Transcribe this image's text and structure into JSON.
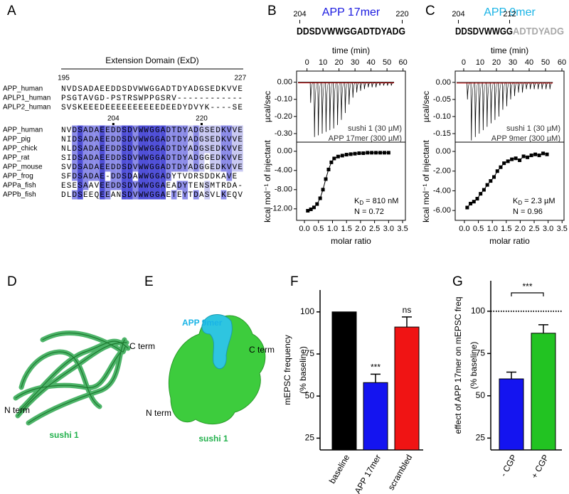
{
  "panel_labels": [
    "A",
    "B",
    "C",
    "D",
    "E",
    "F",
    "G"
  ],
  "alignment": {
    "title": "Extension Domain (ExD)",
    "blocks": [
      {
        "start": 195,
        "end": 227,
        "rows": [
          {
            "name": "APP_human",
            "sequence": "NVDSADAEEDDSDVWWGGADTDYADGSEDKVVE"
          },
          {
            "name": "APLP1_human",
            "sequence": "PSGTAVGD-PSTRSWPPGSRV------------"
          },
          {
            "name": "APLP2_human",
            "sequence": "SVSKEEEDEEEEEEEEEEDEEDYDVYK----SE"
          }
        ]
      },
      {
        "markers": [
          204,
          220
        ],
        "rows": [
          {
            "name": "APP_human",
            "sequence": "NVDSADAEEDDSDVWWGGADTDYADGSEDKVVE"
          },
          {
            "name": "APP_pig",
            "sequence": "NIDSADAEEDDSDVWWGGADTDYADGSEDKVVE"
          },
          {
            "name": "APP_chick",
            "sequence": "NLDSADAEEDDSDVWWGGADTDYADGSEDKVVE"
          },
          {
            "name": "APP_rat",
            "sequence": "SIDSADAEEDDSDVWWGGADTDYADGGEDKVVE"
          },
          {
            "name": "APP_mouse",
            "sequence": "SVDSADAEEDDSDVWWGGADTDYADGGEDKVVE"
          },
          {
            "name": "APP_frog",
            "sequence": "SFDSADAE-DDSDAWWGGADYTVDRSDDKAVE"
          },
          {
            "name": "APPa_fish",
            "sequence": "ESESAAVEEDDSDVWWGGAEADYTENSMTRDA-"
          },
          {
            "name": "APPb_fish",
            "sequence": "DLDSEEQEEANSDVWWGGAETEYTDASVLKEQV"
          }
        ]
      }
    ]
  },
  "chart_data": [
    {
      "type": "itc",
      "title": "APP 17mer",
      "title_color": "#1a1ae0",
      "sequence_start": 204,
      "sequence": [
        {
          "text": "DDSDVWWGGADTDYADG",
          "color": "#000000",
          "end_label": 220
        }
      ],
      "raw": {
        "xlabel": "time (min)",
        "ylabel": "µcal/sec",
        "xlim": [
          -6.5,
          61.5
        ],
        "xticks": [
          0,
          10,
          20,
          30,
          40,
          50,
          60
        ],
        "ylim": [
          -0.35,
          0.065
        ],
        "yticks": [
          {
            "value": 0,
            "label": "0.00"
          },
          {
            "value": -0.1,
            "label": "-0.10"
          },
          {
            "value": -0.2,
            "label": "-0.20"
          },
          {
            "value": -0.3,
            "label": "-0.30"
          }
        ],
        "x": [
          2,
          4.4,
          6.8,
          9.2,
          11.6,
          14,
          16.4,
          18.8,
          21.2,
          23.6,
          26,
          28.4,
          30.8,
          33.2,
          35.6,
          38,
          40.4,
          42.8,
          45.2,
          47.6,
          50,
          52.4
        ],
        "values": [
          -0.12,
          -0.32,
          -0.31,
          -0.3,
          -0.29,
          -0.28,
          -0.27,
          -0.25,
          -0.22,
          -0.18,
          -0.13,
          -0.09,
          -0.06,
          -0.05,
          -0.04,
          -0.03,
          -0.03,
          -0.03,
          -0.02,
          -0.02,
          -0.02,
          -0.02
        ],
        "color": "#000000",
        "baseline_color": "#c00000"
      },
      "binding": {
        "xlabel": "molar ratio",
        "ylabel": "kcal mol⁻¹ of injectant",
        "xlim": [
          -0.28,
          3.6
        ],
        "xticks": [
          {
            "value": 0,
            "label": "0.0"
          },
          0.5,
          {
            "value": 1,
            "label": "1.0"
          },
          1.5,
          {
            "value": 2,
            "label": "2.0"
          },
          2.5,
          {
            "value": 3,
            "label": "3.0"
          },
          3.5
        ],
        "ylim": [
          -14.4,
          1.9
        ],
        "yticks": [
          {
            "value": 0,
            "label": "0.00"
          },
          {
            "value": -4,
            "label": "-4.00"
          },
          {
            "value": -8,
            "label": "-8.00"
          },
          {
            "value": -12,
            "label": "-12.00"
          }
        ],
        "x": [
          0.12,
          0.23,
          0.34,
          0.45,
          0.56,
          0.66,
          0.76,
          0.86,
          0.96,
          1.06,
          1.2,
          1.35,
          1.5,
          1.65,
          1.8,
          1.95,
          2.1,
          2.25,
          2.4,
          2.55,
          2.7,
          2.85,
          3.0
        ],
        "values": [
          -12.4,
          -12.1,
          -11.7,
          -11.0,
          -9.8,
          -8.0,
          -5.8,
          -3.8,
          -2.3,
          -1.5,
          -1.1,
          -0.9,
          -0.7,
          -0.6,
          -0.5,
          -0.4,
          -0.4,
          -0.3,
          -0.3,
          -0.3,
          -0.3,
          -0.3,
          -0.3
        ]
      },
      "annotations": [
        "sushi 1 (30 µM)",
        "APP 17mer (300 µM)"
      ],
      "kd": {
        "symbol": "K",
        "subscript": "D",
        "text": " = 810 nM"
      },
      "n_text": "N = 0.72"
    },
    {
      "type": "itc",
      "title": "APP 9mer",
      "title_color": "#1ab4e6",
      "sequence_start": 204,
      "sequence": [
        {
          "text": "DDSDVWWGG",
          "color": "#000000",
          "end_label": 212
        },
        {
          "text": "ADTDYADG",
          "color": "#a8a8a8"
        }
      ],
      "raw": {
        "xlabel": "time (min)",
        "ylabel": "µcal/sec",
        "xlim": [
          -5.2,
          61.3
        ],
        "xticks": [
          0,
          10,
          20,
          30,
          40,
          50,
          60
        ],
        "ylim": [
          -0.175,
          0.033
        ],
        "yticks": [
          {
            "value": 0,
            "label": "0.00"
          },
          {
            "value": -0.05,
            "label": "-0.05"
          },
          {
            "value": -0.1,
            "label": "-0.10"
          },
          {
            "value": -0.15,
            "label": "-0.15"
          }
        ],
        "x": [
          2,
          4.4,
          6.8,
          9.2,
          11.6,
          14,
          16.4,
          18.8,
          21.2,
          23.6,
          26,
          28.4,
          30.8,
          33.2,
          35.6,
          38,
          40.4,
          42.8,
          45.2,
          47.6,
          50,
          52.4
        ],
        "values": [
          -0.05,
          -0.17,
          -0.16,
          -0.15,
          -0.14,
          -0.13,
          -0.12,
          -0.11,
          -0.1,
          -0.08,
          -0.07,
          -0.05,
          -0.04,
          -0.03,
          -0.03,
          -0.02,
          -0.02,
          -0.02,
          -0.02,
          -0.02,
          -0.02,
          -0.02
        ],
        "color": "#000000",
        "baseline_color": "#c00000"
      },
      "binding": {
        "xlabel": "molar ratio",
        "ylabel": "kcal mol⁻¹ of injectant",
        "xlim": [
          -0.33,
          3.57
        ],
        "xticks": [
          {
            "value": 0,
            "label": "0.0"
          },
          0.5,
          {
            "value": 1,
            "label": "1.0"
          },
          1.5,
          {
            "value": 2,
            "label": "2.0"
          },
          2.5,
          {
            "value": 3,
            "label": "3.0"
          },
          3.5
        ],
        "ylim": [
          -7.0,
          0.94
        ],
        "yticks": [
          {
            "value": 0,
            "label": "0.00"
          },
          {
            "value": -2,
            "label": "-2.00"
          },
          {
            "value": -4,
            "label": "-4.00"
          },
          {
            "value": -6,
            "label": "-6.00"
          }
        ],
        "x": [
          0.1,
          0.22,
          0.34,
          0.46,
          0.58,
          0.7,
          0.82,
          0.94,
          1.06,
          1.18,
          1.3,
          1.42,
          1.56,
          1.7,
          1.84,
          1.98,
          2.12,
          2.26,
          2.4,
          2.54,
          2.68,
          2.82,
          2.96
        ],
        "values": [
          -5.7,
          -5.3,
          -5.1,
          -4.8,
          -4.3,
          -3.9,
          -3.4,
          -3.0,
          -2.6,
          -2.0,
          -1.6,
          -1.2,
          -1.0,
          -0.8,
          -0.7,
          -0.9,
          -0.5,
          -0.6,
          -0.4,
          -0.3,
          -0.4,
          -0.2,
          -0.3
        ]
      },
      "annotations": [
        "sushi 1 (30 µM)",
        "APP 9mer (300 µM)"
      ],
      "kd": {
        "symbol": "K",
        "subscript": "D",
        "text": " = 2.3 µM"
      },
      "n_text": "N = 0.96"
    },
    {
      "type": "bar",
      "ylabel": [
        "mEPSC frequency",
        "(% baseline)"
      ],
      "categories": [
        "baseline",
        "APP 17mer",
        "scrambled"
      ],
      "values": [
        100,
        58,
        91
      ],
      "errors": [
        null,
        5,
        6
      ],
      "colors": [
        "#000000",
        "#1414f0",
        "#f01414"
      ],
      "annotations": [
        null,
        "***",
        "ns"
      ],
      "ylim": [
        18,
        113
      ],
      "yticks": [
        25,
        50,
        75,
        100
      ]
    },
    {
      "type": "bar",
      "ylabel": [
        "effect of APP 17mer on mEPSC freq",
        "(% baseline)"
      ],
      "categories": [
        "- CGP",
        "+ CGP"
      ],
      "values": [
        60,
        87
      ],
      "errors": [
        4,
        5
      ],
      "colors": [
        "#1414f0",
        "#22c322"
      ],
      "reference_line": 100,
      "significance": "***",
      "ylim": [
        18,
        118
      ],
      "yticks": [
        25,
        50,
        75,
        100
      ]
    }
  ],
  "structures": [
    {
      "labels": [
        "C term",
        "N term"
      ],
      "name": "sushi 1"
    },
    {
      "peptide": "APP 9mer",
      "labels": [
        "C term",
        "N term"
      ],
      "name": "sushi 1"
    }
  ]
}
